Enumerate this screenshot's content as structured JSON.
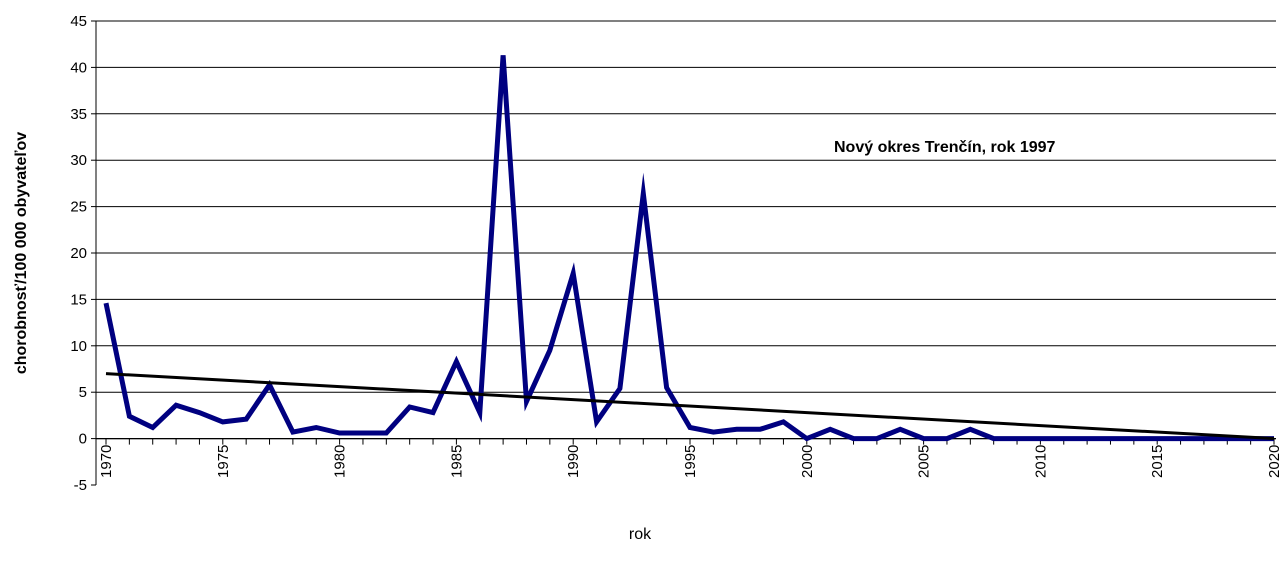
{
  "chart_data": {
    "type": "line",
    "title": "",
    "annotation": "Nový okres Trenčín, rok 1997",
    "xlabel": "rok",
    "ylabel": "chorobnosť/100 000 obyvateľov",
    "xlim": [
      1970,
      2020
    ],
    "ylim": [
      -5,
      45
    ],
    "y_ticks": [
      -5,
      0,
      5,
      10,
      15,
      20,
      25,
      30,
      35,
      40,
      45
    ],
    "x_ticks": [
      1970,
      1975,
      1980,
      1985,
      1990,
      1995,
      2000,
      2005,
      2010,
      2015,
      2020
    ],
    "grid": "horizontal",
    "colors": {
      "series": "#000080",
      "trend": "#000000",
      "grid": "#000000"
    },
    "series": [
      {
        "x": [
          1970,
          1971,
          1972,
          1973,
          1974,
          1975,
          1976,
          1977,
          1978,
          1979,
          1980,
          1981,
          1982,
          1983,
          1984,
          1985,
          1986,
          1987,
          1988,
          1989,
          1990,
          1991,
          1992,
          1993,
          1994,
          1995,
          1996,
          1997,
          1998,
          1999,
          2000,
          2001,
          2002,
          2003,
          2004,
          2005,
          2006,
          2007,
          2008,
          2009,
          2010,
          2011,
          2012,
          2013,
          2014,
          2015,
          2016,
          2017,
          2018,
          2019,
          2020
        ],
        "values": [
          14.6,
          2.4,
          1.2,
          3.6,
          2.8,
          1.8,
          2.1,
          5.8,
          0.7,
          1.2,
          0.6,
          0.6,
          0.6,
          3.4,
          2.8,
          8.3,
          2.8,
          41.3,
          4.0,
          9.5,
          17.8,
          1.8,
          5.4,
          26.4,
          5.5,
          1.2,
          0.7,
          1.0,
          1.0,
          1.8,
          0.0,
          1.0,
          0.0,
          0.0,
          1.0,
          0.0,
          0.0,
          1.0,
          0.0,
          0.0,
          0.0,
          0.0,
          0.0,
          0.0,
          0.0,
          0.0,
          0.0,
          0.0,
          0.0,
          0.0,
          0.0
        ]
      },
      {
        "x": [
          1970,
          2020
        ],
        "values": [
          7.0,
          0.0
        ]
      }
    ]
  }
}
